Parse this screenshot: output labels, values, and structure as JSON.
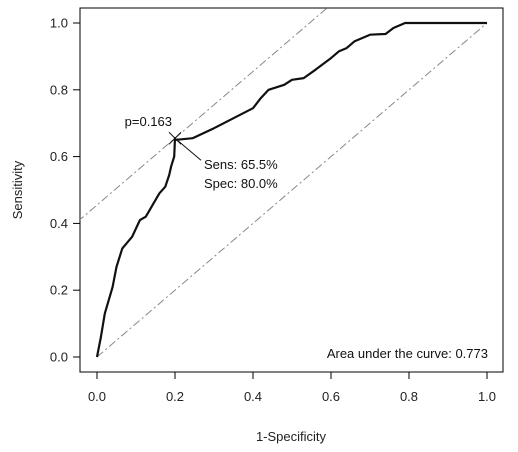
{
  "chart_data": {
    "type": "line",
    "xlabel": "1-Specificity",
    "ylabel": "Sensitivity",
    "xlim": [
      0,
      1
    ],
    "ylim": [
      0,
      1
    ],
    "x_ticks": [
      "0.0",
      "0.2",
      "0.4",
      "0.6",
      "0.8",
      "1.0"
    ],
    "y_ticks": [
      "0.0",
      "0.2",
      "0.4",
      "0.6",
      "0.8",
      "1.0"
    ],
    "grid": false,
    "series": [
      {
        "name": "",
        "color": "#111111",
        "points": [
          [
            0.0,
            0.0
          ],
          [
            0.01,
            0.06
          ],
          [
            0.02,
            0.13
          ],
          [
            0.04,
            0.21
          ],
          [
            0.05,
            0.27
          ],
          [
            0.065,
            0.325
          ],
          [
            0.09,
            0.36
          ],
          [
            0.11,
            0.41
          ],
          [
            0.125,
            0.42
          ],
          [
            0.14,
            0.45
          ],
          [
            0.16,
            0.49
          ],
          [
            0.175,
            0.51
          ],
          [
            0.185,
            0.545
          ],
          [
            0.19,
            0.57
          ],
          [
            0.198,
            0.6
          ],
          [
            0.2,
            0.655
          ],
          [
            0.2,
            0.65
          ],
          [
            0.22,
            0.652
          ],
          [
            0.245,
            0.655
          ],
          [
            0.3,
            0.685
          ],
          [
            0.35,
            0.715
          ],
          [
            0.4,
            0.745
          ],
          [
            0.42,
            0.775
          ],
          [
            0.44,
            0.8
          ],
          [
            0.48,
            0.815
          ],
          [
            0.5,
            0.83
          ],
          [
            0.53,
            0.835
          ],
          [
            0.56,
            0.86
          ],
          [
            0.6,
            0.895
          ],
          [
            0.62,
            0.915
          ],
          [
            0.64,
            0.925
          ],
          [
            0.66,
            0.945
          ],
          [
            0.7,
            0.965
          ],
          [
            0.74,
            0.967
          ],
          [
            0.76,
            0.985
          ],
          [
            0.79,
            1.0
          ],
          [
            1.0,
            1.0
          ]
        ]
      }
    ],
    "reference_lines": [
      {
        "style": "dash-dot",
        "color": "#888888",
        "from": [
          0,
          0
        ],
        "to": [
          1,
          1
        ]
      },
      {
        "style": "dash-dot",
        "color": "#888888",
        "from": [
          -0.05,
          0.405
        ],
        "to": [
          0.6,
          1.055
        ]
      }
    ],
    "optimal_point": {
      "x": 0.2,
      "y": 0.655
    },
    "annotations": {
      "cutoff": "p=0.163",
      "sensitivity": "Sens: 65.5%",
      "specificity": "Spec: 80.0%",
      "auc": "Area under the curve: 0.773"
    }
  }
}
